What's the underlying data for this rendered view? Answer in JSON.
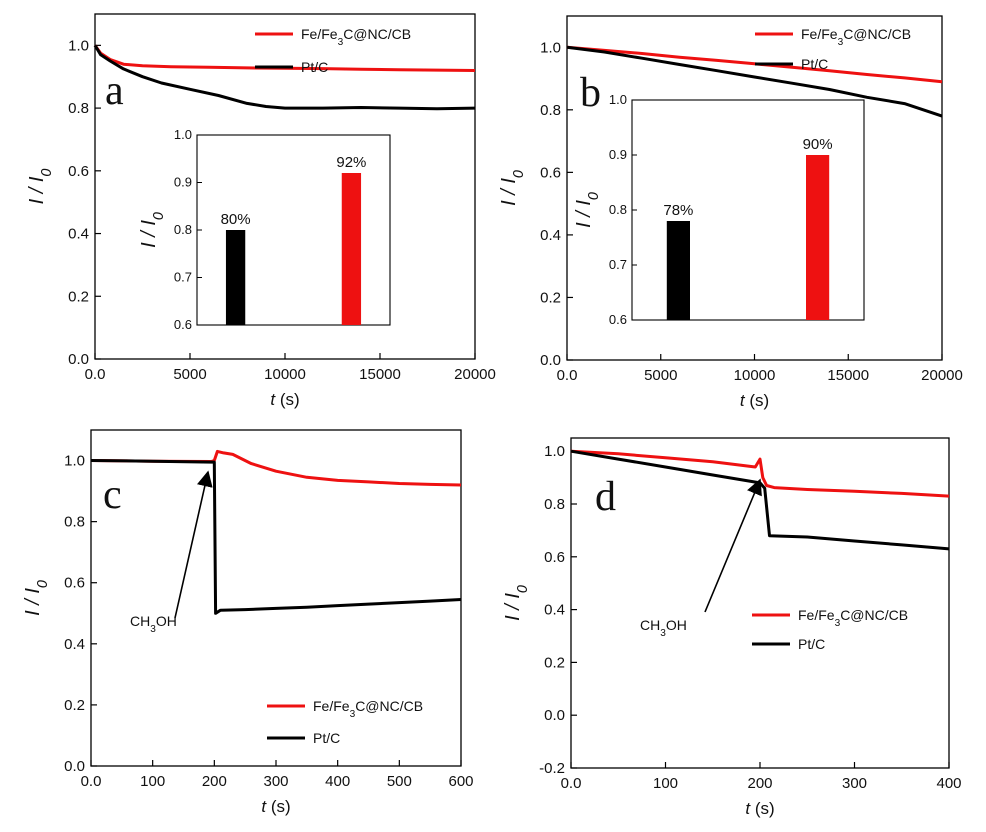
{
  "figure": {
    "series_colors": {
      "fe": "#ee1111",
      "pt": "#000000"
    }
  },
  "chart_data": [
    {
      "type": "line",
      "panel_label": "a",
      "ylabel": "I / I0",
      "xlabel_var": "t",
      "xlabel_unit": " (s)",
      "xlim": [
        0,
        20000
      ],
      "ylim": [
        0.0,
        1.1
      ],
      "xticks": [
        0,
        5000,
        10000,
        15000,
        20000
      ],
      "yticks": [
        0.0,
        0.2,
        0.4,
        0.6,
        0.8,
        1.0
      ],
      "legend_position": "top-right",
      "series": [
        {
          "name": "Fe/Fe3C@NC/CB",
          "color": "#ee1111",
          "x": [
            0,
            300,
            800,
            1500,
            2500,
            4000,
            6000,
            8000,
            10000,
            12000,
            14000,
            16000,
            18000,
            20000
          ],
          "y": [
            1.0,
            0.975,
            0.955,
            0.94,
            0.935,
            0.932,
            0.93,
            0.928,
            0.927,
            0.926,
            0.924,
            0.922,
            0.921,
            0.92
          ]
        },
        {
          "name": "Pt/C",
          "color": "#000000",
          "x": [
            0,
            300,
            800,
            1500,
            2500,
            3500,
            5000,
            6500,
            8000,
            9000,
            10000,
            12000,
            14000,
            16000,
            18000,
            20000
          ],
          "y": [
            1.0,
            0.97,
            0.95,
            0.925,
            0.9,
            0.88,
            0.86,
            0.84,
            0.815,
            0.805,
            0.8,
            0.8,
            0.802,
            0.8,
            0.798,
            0.8
          ]
        }
      ],
      "inset": {
        "type": "bar",
        "ylabel": "I / I0",
        "ylim": [
          0.6,
          1.0
        ],
        "yticks": [
          0.6,
          0.7,
          0.8,
          0.9,
          1.0
        ],
        "values": [
          0.8,
          0.92
        ],
        "labels": [
          "80%",
          "92%"
        ],
        "colors": [
          "#000000",
          "#ee1111"
        ]
      }
    },
    {
      "type": "line",
      "panel_label": "b",
      "ylabel": "I / I0",
      "xlabel_var": "t",
      "xlabel_unit": " (s)",
      "xlim": [
        0,
        20000
      ],
      "ylim": [
        0.0,
        1.1
      ],
      "xticks": [
        0,
        5000,
        10000,
        15000,
        20000
      ],
      "yticks": [
        0.0,
        0.2,
        0.4,
        0.6,
        0.8,
        1.0
      ],
      "legend_position": "top-right",
      "series": [
        {
          "name": "Fe/Fe3C@NC/CB",
          "color": "#ee1111",
          "x": [
            0,
            2000,
            4000,
            6000,
            8000,
            10000,
            12000,
            14000,
            16000,
            18000,
            20000
          ],
          "y": [
            1.0,
            0.99,
            0.98,
            0.968,
            0.958,
            0.947,
            0.936,
            0.925,
            0.913,
            0.902,
            0.89
          ]
        },
        {
          "name": "Pt/C",
          "color": "#000000",
          "x": [
            0,
            2000,
            4000,
            6000,
            8000,
            10000,
            12000,
            14000,
            16000,
            18000,
            20000
          ],
          "y": [
            1.0,
            0.985,
            0.965,
            0.945,
            0.925,
            0.905,
            0.885,
            0.865,
            0.84,
            0.82,
            0.78
          ]
        }
      ],
      "inset": {
        "type": "bar",
        "ylabel": "I / I0",
        "ylim": [
          0.6,
          1.0
        ],
        "yticks": [
          0.6,
          0.7,
          0.8,
          0.9,
          1.0
        ],
        "values": [
          0.78,
          0.9
        ],
        "labels": [
          "78%",
          "90%"
        ],
        "colors": [
          "#000000",
          "#ee1111"
        ]
      }
    },
    {
      "type": "line",
      "panel_label": "c",
      "ylabel": "I / I0",
      "xlabel_var": "t",
      "xlabel_unit": " (s)",
      "xlim": [
        0,
        600
      ],
      "ylim": [
        0.0,
        1.1
      ],
      "xticks": [
        0,
        100,
        200,
        300,
        400,
        500,
        600
      ],
      "yticks": [
        0.0,
        0.2,
        0.4,
        0.6,
        0.8,
        1.0
      ],
      "legend_position": "bottom-right",
      "annotation": {
        "text": "CH3OH",
        "at_x": 200
      },
      "series": [
        {
          "name": "Fe/Fe3C@NC/CB",
          "color": "#ee1111",
          "x": [
            0,
            100,
            195,
            200,
            205,
            215,
            230,
            260,
            300,
            350,
            400,
            450,
            500,
            550,
            600
          ],
          "y": [
            1.0,
            0.998,
            0.997,
            1.0,
            1.03,
            1.025,
            1.02,
            0.99,
            0.965,
            0.945,
            0.935,
            0.93,
            0.925,
            0.922,
            0.92
          ]
        },
        {
          "name": "Pt/C",
          "color": "#000000",
          "x": [
            0,
            100,
            195,
            200,
            202,
            210,
            250,
            300,
            350,
            400,
            450,
            500,
            550,
            600
          ],
          "y": [
            1.0,
            0.998,
            0.995,
            0.995,
            0.5,
            0.51,
            0.512,
            0.516,
            0.52,
            0.525,
            0.53,
            0.535,
            0.54,
            0.545
          ]
        }
      ]
    },
    {
      "type": "line",
      "panel_label": "d",
      "ylabel": "I / I0",
      "xlabel_var": "t",
      "xlabel_unit": " (s)",
      "xlim": [
        0,
        400
      ],
      "ylim": [
        -0.2,
        1.05
      ],
      "xticks": [
        0,
        100,
        200,
        300,
        400
      ],
      "yticks": [
        -0.2,
        0.0,
        0.2,
        0.4,
        0.6,
        0.8,
        1.0
      ],
      "legend_position": "center-right",
      "annotation": {
        "text": "CH3OH",
        "at_x": 200
      },
      "series": [
        {
          "name": "Fe/Fe3C@NC/CB",
          "color": "#ee1111",
          "x": [
            0,
            50,
            100,
            150,
            195,
            200,
            203,
            207,
            215,
            250,
            300,
            350,
            400
          ],
          "y": [
            1.0,
            0.99,
            0.975,
            0.96,
            0.94,
            0.97,
            0.9,
            0.87,
            0.862,
            0.855,
            0.848,
            0.84,
            0.83
          ]
        },
        {
          "name": "Pt/C",
          "color": "#000000",
          "x": [
            0,
            50,
            100,
            150,
            200,
            205,
            210,
            250,
            300,
            350,
            400
          ],
          "y": [
            1.0,
            0.97,
            0.94,
            0.91,
            0.88,
            0.86,
            0.68,
            0.675,
            0.66,
            0.645,
            0.63
          ]
        }
      ]
    }
  ]
}
